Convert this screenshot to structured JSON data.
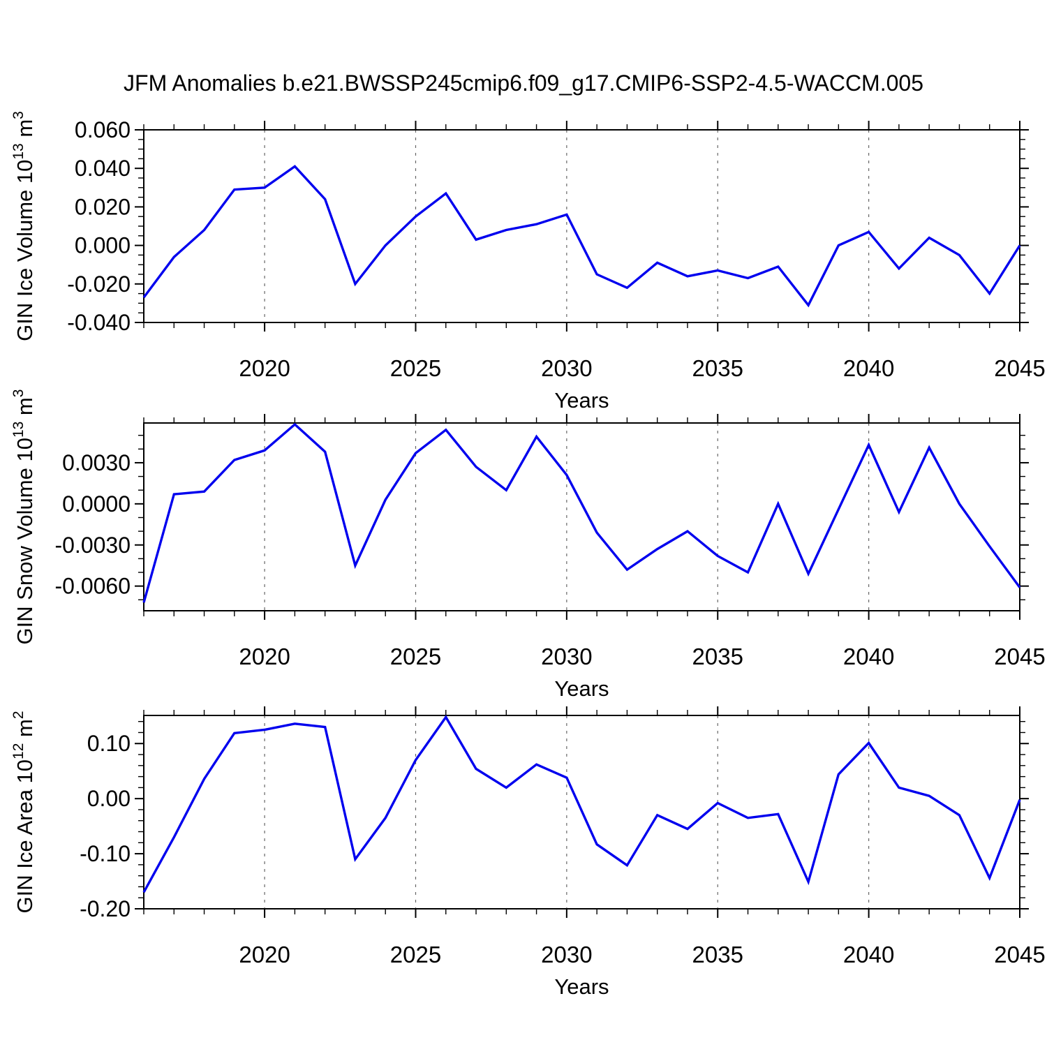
{
  "title": "JFM Anomalies b.e21.BWSSP245cmip6.f09_g17.CMIP6-SSP2-4.5-WACCM.005",
  "style": {
    "line_color": "#0000EE",
    "grid_color": "#666666",
    "axis_color": "#000000",
    "background": "#ffffff"
  },
  "chart_data": [
    {
      "id": "gin-ice-volume",
      "type": "line",
      "ylabel": "GIN Ice Volume 10^13 m^3",
      "ylabel_rich": [
        {
          "text": "GIN Ice Volume 10",
          "sup": false
        },
        {
          "text": "13",
          "sup": true
        },
        {
          "text": " m",
          "sup": false
        },
        {
          "text": "3",
          "sup": true
        }
      ],
      "xlabel": "Years",
      "xlim": [
        2016,
        2045
      ],
      "ylim": [
        -0.04,
        0.06
      ],
      "x": [
        2016,
        2017,
        2018,
        2019,
        2020,
        2021,
        2022,
        2023,
        2024,
        2025,
        2026,
        2027,
        2028,
        2029,
        2030,
        2031,
        2032,
        2033,
        2034,
        2035,
        2036,
        2037,
        2038,
        2039,
        2040,
        2041,
        2042,
        2043,
        2044,
        2045
      ],
      "values": [
        -0.027,
        -0.006,
        0.008,
        0.029,
        0.03,
        0.041,
        0.024,
        -0.02,
        0.0,
        0.015,
        0.027,
        0.003,
        0.008,
        0.011,
        0.016,
        -0.015,
        -0.022,
        -0.009,
        -0.016,
        -0.013,
        -0.017,
        -0.011,
        -0.031,
        0.0,
        0.007,
        -0.012,
        0.004,
        -0.005,
        -0.025,
        0.0
      ],
      "ytick_values": [
        0.06,
        0.04,
        0.02,
        0.0,
        -0.02,
        -0.04
      ],
      "ytick_labels": [
        "0.060",
        "0.040",
        "0.020",
        "0.000",
        "-0.020",
        "-0.040"
      ],
      "y_major_step": 0.02,
      "y_minor_step": 0.005,
      "xtick_values": [
        2020,
        2025,
        2030,
        2035,
        2040,
        2045
      ],
      "xtick_labels": [
        "2020",
        "2025",
        "2030",
        "2035",
        "2040",
        "2045"
      ],
      "x_minor_step": 1,
      "grid_x": [
        2020,
        2025,
        2030,
        2035,
        2040
      ]
    },
    {
      "id": "gin-snow-volume",
      "type": "line",
      "ylabel": "GIN Snow Volume 10^13 m^3",
      "ylabel_rich": [
        {
          "text": "GIN Snow Volume 10",
          "sup": false
        },
        {
          "text": "13",
          "sup": true
        },
        {
          "text": " m",
          "sup": false
        },
        {
          "text": "3",
          "sup": true
        }
      ],
      "xlabel": "Years",
      "xlim": [
        2016,
        2045
      ],
      "ylim": [
        -0.0078,
        0.0059
      ],
      "x": [
        2016,
        2017,
        2018,
        2019,
        2020,
        2021,
        2022,
        2023,
        2024,
        2025,
        2026,
        2027,
        2028,
        2029,
        2030,
        2031,
        2032,
        2033,
        2034,
        2035,
        2036,
        2037,
        2038,
        2039,
        2040,
        2041,
        2042,
        2043,
        2044,
        2045
      ],
      "values": [
        -0.0072,
        0.0007,
        0.0009,
        0.0032,
        0.0039,
        0.0058,
        0.0038,
        -0.0045,
        0.0003,
        0.0037,
        0.0054,
        0.0027,
        0.001,
        0.0049,
        0.0021,
        -0.0021,
        -0.0048,
        -0.0033,
        -0.002,
        -0.0038,
        -0.005,
        0.0,
        -0.0051,
        -0.0004,
        0.0043,
        -0.0006,
        0.0041,
        0.0,
        -0.0031,
        -0.0061
      ],
      "ytick_values": [
        0.003,
        0.0,
        -0.003,
        -0.006
      ],
      "ytick_labels": [
        "0.0030",
        "0.0000",
        "-0.0030",
        "-0.0060"
      ],
      "y_major_step": 0.003,
      "y_minor_step": 0.001,
      "xtick_values": [
        2020,
        2025,
        2030,
        2035,
        2040,
        2045
      ],
      "xtick_labels": [
        "2020",
        "2025",
        "2030",
        "2035",
        "2040",
        "2045"
      ],
      "x_minor_step": 1,
      "grid_x": [
        2020,
        2025,
        2030,
        2035,
        2040
      ]
    },
    {
      "id": "gin-ice-area",
      "type": "line",
      "ylabel": "GIN Ice Area 10^12 m^2",
      "ylabel_rich": [
        {
          "text": "GIN Ice Area 10",
          "sup": false
        },
        {
          "text": "12",
          "sup": true
        },
        {
          "text": " m",
          "sup": false
        },
        {
          "text": "2",
          "sup": true
        }
      ],
      "xlabel": "Years",
      "xlim": [
        2016,
        2045
      ],
      "ylim": [
        -0.2,
        0.151
      ],
      "x": [
        2016,
        2017,
        2018,
        2019,
        2020,
        2021,
        2022,
        2023,
        2024,
        2025,
        2026,
        2027,
        2028,
        2029,
        2030,
        2031,
        2032,
        2033,
        2034,
        2035,
        2036,
        2037,
        2038,
        2039,
        2040,
        2041,
        2042,
        2043,
        2044,
        2045
      ],
      "values": [
        -0.17,
        -0.07,
        0.036,
        0.119,
        0.125,
        0.136,
        0.13,
        -0.11,
        -0.035,
        0.07,
        0.148,
        0.054,
        0.02,
        0.062,
        0.038,
        -0.083,
        -0.121,
        -0.03,
        -0.055,
        -0.008,
        -0.035,
        -0.028,
        -0.151,
        0.044,
        0.101,
        0.02,
        0.005,
        -0.03,
        -0.144,
        -0.002
      ],
      "ytick_values": [
        0.1,
        0.0,
        -0.1,
        -0.2
      ],
      "ytick_labels": [
        "0.10",
        "0.00",
        "-0.10",
        "-0.20"
      ],
      "y_major_step": 0.1,
      "y_minor_step": 0.02,
      "xtick_values": [
        2020,
        2025,
        2030,
        2035,
        2040,
        2045
      ],
      "xtick_labels": [
        "2020",
        "2025",
        "2030",
        "2035",
        "2040",
        "2045"
      ],
      "x_minor_step": 1,
      "grid_x": [
        2020,
        2025,
        2030,
        2035,
        2040
      ]
    }
  ]
}
